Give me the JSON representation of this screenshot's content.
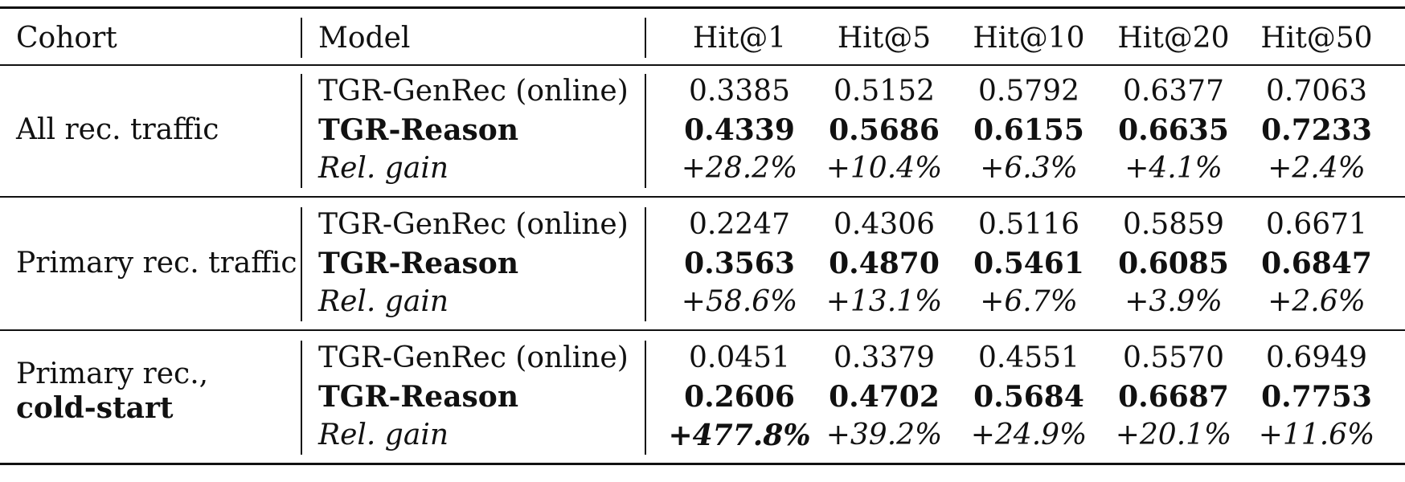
{
  "header": {
    "cohort": "Cohort",
    "model": "Model",
    "metrics": [
      "Hit@1",
      "Hit@5",
      "Hit@10",
      "Hit@20",
      "Hit@50"
    ]
  },
  "groups": [
    {
      "cohort_line1": "All rec. traffic",
      "cohort_line2": "",
      "rows": [
        {
          "model": "TGR-GenRec (online)",
          "style": "normal",
          "values": [
            "0.3385",
            "0.5152",
            "0.5792",
            "0.6377",
            "0.7063"
          ]
        },
        {
          "model": "TGR-Reason",
          "style": "bold",
          "values": [
            "0.4339",
            "0.5686",
            "0.6155",
            "0.6635",
            "0.7233"
          ]
        },
        {
          "model": "Rel. gain",
          "style": "italic",
          "values": [
            "+28.2%",
            "+10.4%",
            "+6.3%",
            "+4.1%",
            "+2.4%"
          ]
        }
      ]
    },
    {
      "cohort_line1": "Primary rec. traffic",
      "cohort_line2": "",
      "rows": [
        {
          "model": "TGR-GenRec (online)",
          "style": "normal",
          "values": [
            "0.2247",
            "0.4306",
            "0.5116",
            "0.5859",
            "0.6671"
          ]
        },
        {
          "model": "TGR-Reason",
          "style": "bold",
          "values": [
            "0.3563",
            "0.4870",
            "0.5461",
            "0.6085",
            "0.6847"
          ]
        },
        {
          "model": "Rel. gain",
          "style": "italic",
          "values": [
            "+58.6%",
            "+13.1%",
            "+6.7%",
            "+3.9%",
            "+2.6%"
          ]
        }
      ]
    },
    {
      "cohort_line1": "Primary rec.,",
      "cohort_line2": "cold-start",
      "rows": [
        {
          "model": "TGR-GenRec (online)",
          "style": "normal",
          "values": [
            "0.0451",
            "0.3379",
            "0.4551",
            "0.5570",
            "0.6949"
          ]
        },
        {
          "model": "TGR-Reason",
          "style": "bold",
          "values": [
            "0.2606",
            "0.4702",
            "0.5684",
            "0.6687",
            "0.7753"
          ]
        },
        {
          "model": "Rel. gain",
          "style": "italic",
          "values": [
            "+477.8%",
            "+39.2%",
            "+24.9%",
            "+20.1%",
            "+11.6%"
          ]
        }
      ]
    }
  ]
}
